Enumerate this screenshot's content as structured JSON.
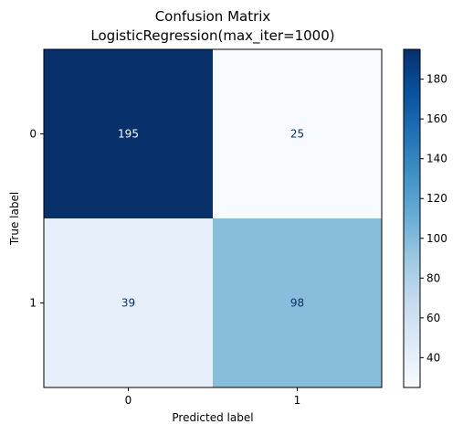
{
  "chart_data": {
    "type": "heatmap",
    "title": "Confusion Matrix",
    "subtitle": "LogisticRegression(max_iter=1000)",
    "xlabel": "Predicted label",
    "ylabel": "True label",
    "x_categories": [
      "0",
      "1"
    ],
    "y_categories": [
      "0",
      "1"
    ],
    "values": [
      [
        195,
        25
      ],
      [
        39,
        98
      ]
    ],
    "colormap": "Blues",
    "colorbar": {
      "vmin": 25,
      "vmax": 195,
      "ticks": [
        40,
        60,
        80,
        100,
        120,
        140,
        160,
        180
      ]
    },
    "colors": {
      "low": "#f7fbff",
      "high": "#08306b",
      "text_on_dark": "#f7fbff",
      "text_on_light": "#08306b"
    }
  }
}
